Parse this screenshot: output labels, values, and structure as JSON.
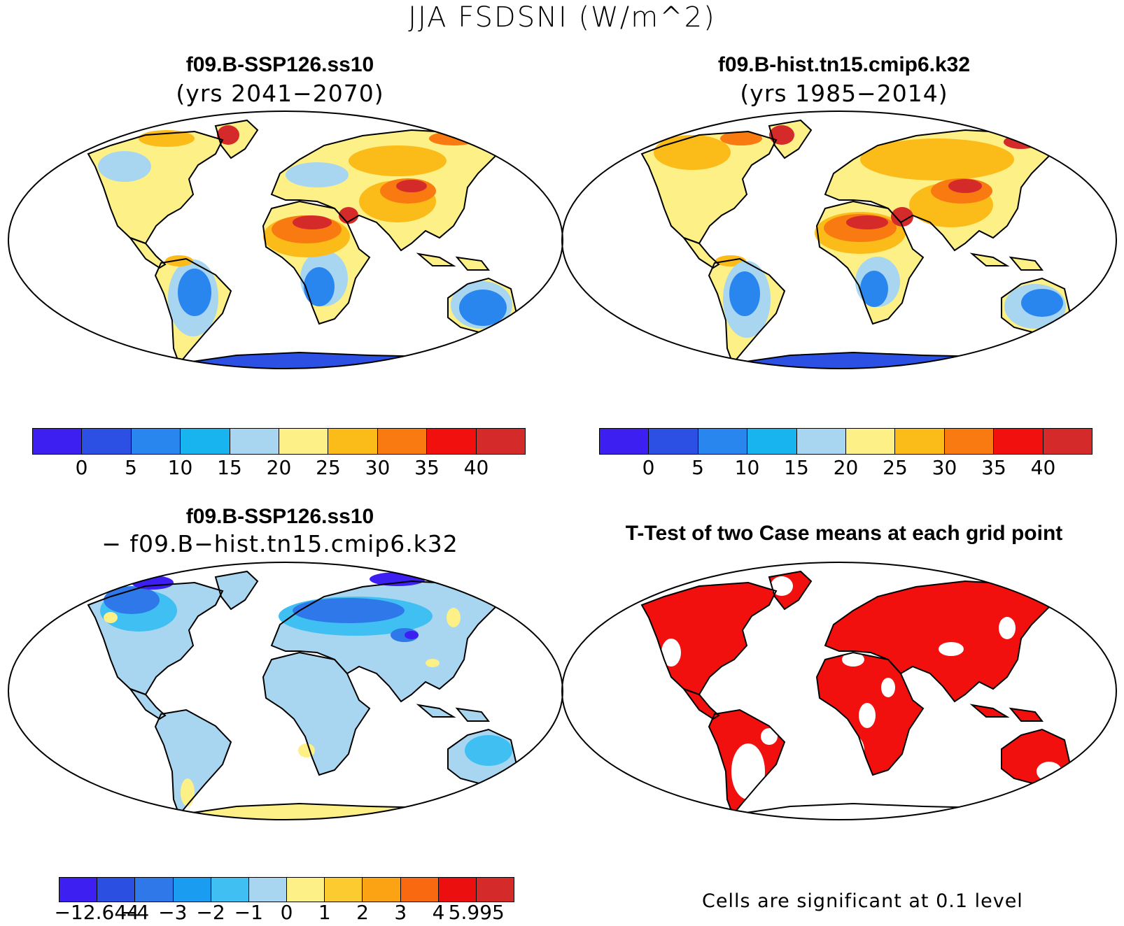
{
  "title": "JJA FSDSNI (W/m^2)",
  "panels": {
    "top_left": {
      "title": "f09.B-SSP126.ss10",
      "subtitle": "(yrs 2041−2070)"
    },
    "top_right": {
      "title": "f09.B-hist.tn15.cmip6.k32",
      "subtitle": "(yrs 1985−2014)"
    },
    "bottom_left": {
      "title": "f09.B-SSP126.ss10",
      "subtitle": "− f09.B−hist.tn15.cmip6.k32"
    },
    "bottom_right": {
      "title": "T-Test of two Case means at each grid point",
      "note": "Cells are significant at 0.1 level"
    }
  },
  "colorbars": {
    "absolute": {
      "colors": [
        "#3d1ff2",
        "#2b50e3",
        "#2a86ef",
        "#18b4ef",
        "#a8d6f0",
        "#fcf087",
        "#fbbb18",
        "#f97a10",
        "#f2100e",
        "#d42a2a"
      ],
      "labels": [
        "0",
        "5",
        "10",
        "15",
        "20",
        "25",
        "30",
        "35",
        "40"
      ]
    },
    "difference": {
      "colors": [
        "#3d1ff2",
        "#2b4fe0",
        "#2f78ea",
        "#1a9cf0",
        "#40bff2",
        "#a8d6f0",
        "#fcf087",
        "#fbcb30",
        "#fba313",
        "#f96a10",
        "#ec0f0f",
        "#d42a2a"
      ],
      "labels": [
        "−12.644",
        "−4",
        "−3",
        "−2",
        "−1",
        "0",
        "1",
        "2",
        "3",
        "4",
        "5.995"
      ]
    }
  },
  "colors": {
    "significant": "#f2100e",
    "land_outline": "#000000"
  }
}
